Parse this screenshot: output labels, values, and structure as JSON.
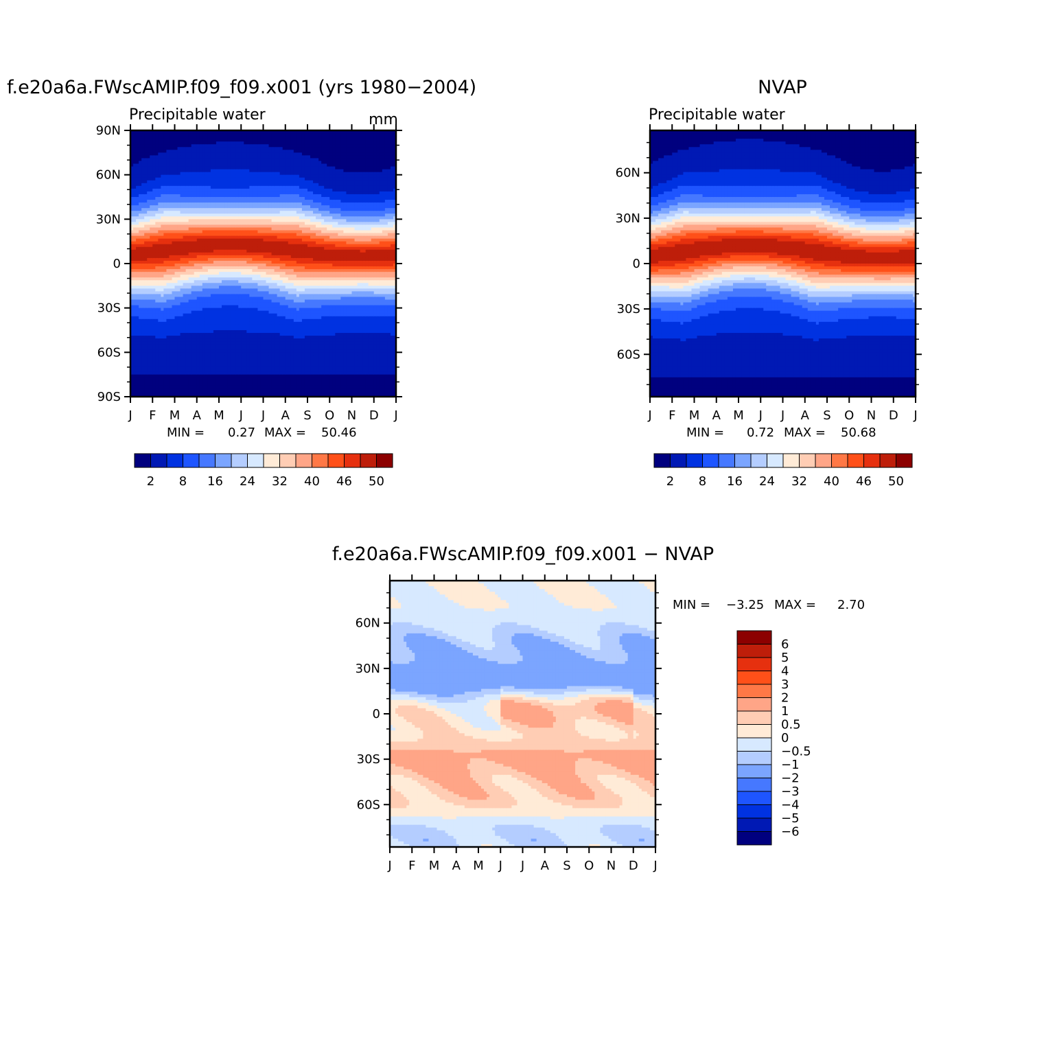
{
  "chart_data": [
    {
      "id": "model",
      "type": "heatmap",
      "title": "f.e20a6a.FWscAMIP.f09_f09.x001 (yrs 1980−2004)",
      "subtitle": "Precipitable water",
      "units": "mm",
      "xlabel": "",
      "ylabel": "",
      "x_ticks": [
        "J",
        "F",
        "M",
        "A",
        "M",
        "J",
        "J",
        "A",
        "S",
        "O",
        "N",
        "D",
        "J"
      ],
      "y_ticks": [
        "90N",
        "60N",
        "30N",
        "0",
        "30S",
        "60S",
        "90S"
      ],
      "y_tick_values": [
        90,
        60,
        30,
        0,
        -30,
        -60,
        -90
      ],
      "ylim": [
        -90,
        90
      ],
      "min_label": "MIN =",
      "min_value": "0.27",
      "max_label": "MAX =",
      "max_value": "50.46",
      "levels": [
        2,
        5,
        8,
        12,
        16,
        20,
        24,
        28,
        32,
        36,
        40,
        43,
        46,
        48,
        50
      ],
      "colorbar_labels": [
        "2",
        "8",
        "16",
        "24",
        "32",
        "40",
        "46",
        "50"
      ],
      "peak_lat": 9,
      "peak_lat_amp": 4,
      "peak_value": 50.46,
      "min_value_num": 0.27
    },
    {
      "id": "obs",
      "type": "heatmap",
      "title": "NVAP",
      "subtitle": "Precipitable water",
      "xlabel": "",
      "ylabel": "",
      "x_ticks": [
        "J",
        "F",
        "M",
        "A",
        "M",
        "J",
        "J",
        "A",
        "S",
        "O",
        "N",
        "D",
        "J"
      ],
      "y_ticks": [
        "60N",
        "30N",
        "0",
        "30S",
        "60S"
      ],
      "y_tick_values": [
        60,
        30,
        0,
        -30,
        -60
      ],
      "ylim": [
        -88,
        88
      ],
      "min_label": "MIN =",
      "min_value": "0.72",
      "max_label": "MAX =",
      "max_value": "50.68",
      "levels": [
        2,
        5,
        8,
        12,
        16,
        20,
        24,
        28,
        32,
        36,
        40,
        43,
        46,
        48,
        50
      ],
      "colorbar_labels": [
        "2",
        "8",
        "16",
        "24",
        "32",
        "40",
        "46",
        "50"
      ],
      "peak_lat": 8,
      "peak_lat_amp": 4,
      "peak_value": 50.68,
      "min_value_num": 0.72
    },
    {
      "id": "diff",
      "type": "heatmap",
      "title": "f.e20a6a.FWscAMIP.f09_f09.x001 − NVAP",
      "xlabel": "",
      "ylabel": "",
      "x_ticks": [
        "J",
        "F",
        "M",
        "A",
        "M",
        "J",
        "J",
        "A",
        "S",
        "O",
        "N",
        "D",
        "J"
      ],
      "y_ticks": [
        "60N",
        "30N",
        "0",
        "30S",
        "60S"
      ],
      "y_tick_values": [
        60,
        30,
        0,
        -30,
        -60
      ],
      "ylim": [
        -88,
        88
      ],
      "min_label": "MIN =",
      "min_value": "−3.25",
      "max_label": "MAX =",
      "max_value": "2.70",
      "levels": [
        -6,
        -5,
        -4,
        -3,
        -2,
        -1,
        -0.5,
        0,
        0.5,
        1,
        2,
        3,
        4,
        5,
        6
      ],
      "colorbar_labels": [
        "6",
        "5",
        "4",
        "3",
        "2",
        "1",
        "0.5",
        "0",
        "−0.5",
        "−1",
        "−2",
        "−3",
        "−4",
        "−5",
        "−6"
      ],
      "bands": [
        {
          "lat": 22,
          "months": [
            0,
            12
          ],
          "value": -1.8
        },
        {
          "lat": 45,
          "months": [
            0,
            12
          ],
          "value": -0.8
        },
        {
          "lat": 5,
          "months": [
            5,
            11
          ],
          "value": 1.4
        },
        {
          "lat": -30,
          "months": [
            0,
            12
          ],
          "value": 1.2
        },
        {
          "lat": -55,
          "months": [
            0,
            12
          ],
          "value": 0.7
        },
        {
          "lat": -80,
          "months": [
            0,
            12
          ],
          "value": -0.6
        }
      ]
    }
  ],
  "colors": {
    "abs_palette": [
      "#00007f",
      "#0019b4",
      "#0032e1",
      "#1e55ff",
      "#4678ff",
      "#7ba5ff",
      "#b4cdff",
      "#d7e9ff",
      "#ffebd7",
      "#ffcdb4",
      "#ffa587",
      "#ff7846",
      "#ff5019",
      "#e6300f",
      "#be1e0a",
      "#8c0000"
    ],
    "diff_palette": [
      "#00007f",
      "#0019b4",
      "#0032e1",
      "#1e55ff",
      "#4678ff",
      "#7ba5ff",
      "#b4cdff",
      "#d7e9ff",
      "#ffebd7",
      "#ffcdb4",
      "#ffa587",
      "#ff7846",
      "#ff5019",
      "#e6300f",
      "#be1e0a",
      "#8c0000"
    ]
  }
}
